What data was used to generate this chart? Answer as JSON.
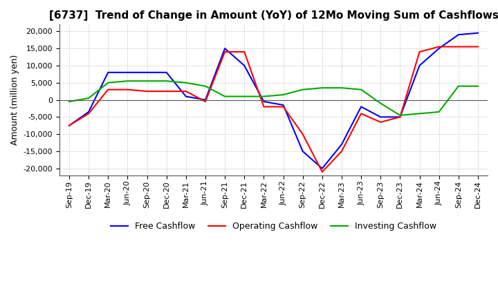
{
  "title": "[6737]  Trend of Change in Amount (YoY) of 12Mo Moving Sum of Cashflows",
  "ylabel": "Amount (million yen)",
  "categories": [
    "Sep-19",
    "Dec-19",
    "Mar-20",
    "Jun-20",
    "Sep-20",
    "Dec-20",
    "Mar-21",
    "Jun-21",
    "Sep-21",
    "Dec-21",
    "Mar-22",
    "Jun-22",
    "Sep-22",
    "Dec-22",
    "Mar-23",
    "Jun-23",
    "Sep-23",
    "Dec-23",
    "Mar-24",
    "Jun-24",
    "Sep-24",
    "Dec-24"
  ],
  "operating": [
    -7500,
    -4000,
    3000,
    3000,
    2500,
    2500,
    2500,
    -500,
    14000,
    14000,
    -2000,
    -2000,
    -10000,
    -21000,
    -15000,
    -4000,
    -6500,
    -5000,
    14000,
    15500,
    15500,
    15500
  ],
  "investing": [
    -500,
    500,
    5000,
    5500,
    5500,
    5500,
    5000,
    4000,
    1000,
    1000,
    1000,
    1500,
    3000,
    3500,
    3500,
    3000,
    -1000,
    -4500,
    -4000,
    -3500,
    4000,
    4000
  ],
  "free": [
    -7500,
    -3500,
    8000,
    8000,
    8000,
    8000,
    1000,
    0,
    15000,
    10000,
    -500,
    -1500,
    -15000,
    -20000,
    -13000,
    -2000,
    -5000,
    -5000,
    10000,
    15000,
    19000,
    19500
  ],
  "operating_color": "#ff0000",
  "investing_color": "#00aa00",
  "free_color": "#0000ff",
  "ylim": [
    -22000,
    22000
  ],
  "yticks": [
    -20000,
    -15000,
    -10000,
    -5000,
    0,
    5000,
    10000,
    15000,
    20000
  ],
  "background_color": "#ffffff",
  "grid_color": "#aaaaaa",
  "title_fontsize": 11,
  "axis_fontsize": 8,
  "ylabel_fontsize": 9,
  "legend_fontsize": 9
}
